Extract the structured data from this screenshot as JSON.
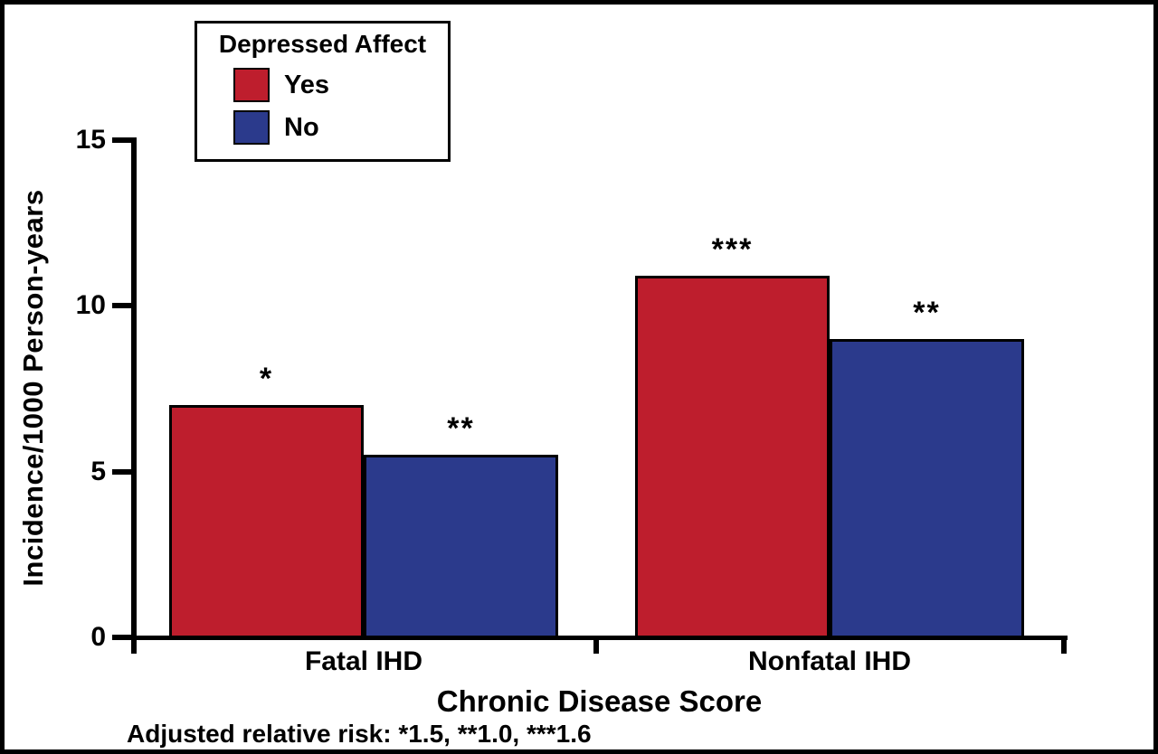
{
  "figure": {
    "background": "#ffffff",
    "border_color": "#000000"
  },
  "legend": {
    "title": "Depressed Affect",
    "items": [
      {
        "label": "Yes",
        "color": "#be1e2d"
      },
      {
        "label": "No",
        "color": "#2b3a8c"
      }
    ]
  },
  "chart_data": {
    "type": "bar",
    "title": "",
    "xlabel": "Chronic Disease Score",
    "ylabel": "Incidence/1000 Person-years",
    "categories": [
      "Fatal IHD",
      "Nonfatal IHD"
    ],
    "series": [
      {
        "name": "Yes",
        "color": "#be1e2d",
        "values": [
          7.0,
          10.9
        ]
      },
      {
        "name": "No",
        "color": "#2b3a8c",
        "values": [
          5.5,
          9.0
        ]
      }
    ],
    "annotations": [
      [
        "*",
        "**"
      ],
      [
        "***",
        "**"
      ]
    ],
    "yticks": [
      0,
      5,
      10,
      15
    ],
    "ylim": [
      0,
      15
    ],
    "grid": false,
    "legend_position": "top-left",
    "axis_color": "#000000",
    "footnote": "Adjusted relative risk: *1.5, **1.0, ***1.6"
  }
}
